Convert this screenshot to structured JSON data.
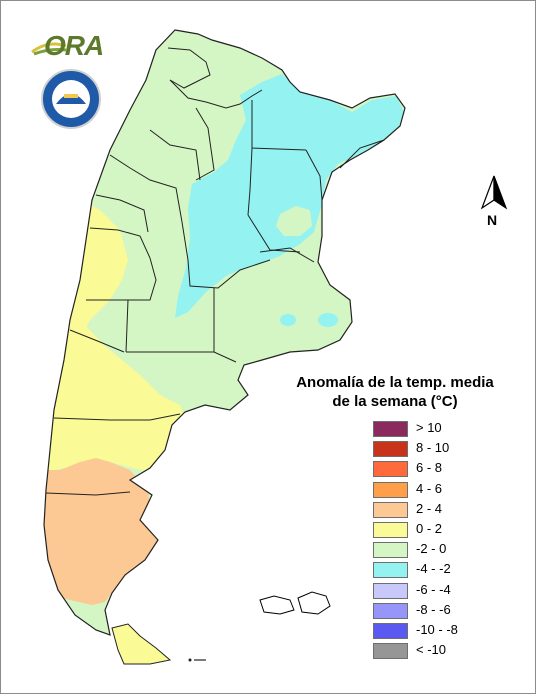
{
  "logo": {
    "text": "ORA"
  },
  "seal": {
    "text": "SERVICIO METEOROLOGICO NACIONAL · ARGENTINA"
  },
  "north_arrow": {
    "label": "N"
  },
  "legend": {
    "title_line1": "Anomalía de la temp. media",
    "title_line2": "de la semana (°C)",
    "items": [
      {
        "label": "> 10",
        "color": "#8b2a5c"
      },
      {
        "label": "8 - 10",
        "color": "#c8331b"
      },
      {
        "label": "6 - 8",
        "color": "#ff6a3d"
      },
      {
        "label": "4 - 6",
        "color": "#ff9f4a"
      },
      {
        "label": "2 - 4",
        "color": "#fcc894"
      },
      {
        "label": "0 - 2",
        "color": "#fafa96"
      },
      {
        "label": "-2 - 0",
        "color": "#d4f5c4"
      },
      {
        "label": "-4 - -2",
        "color": "#94f2f0"
      },
      {
        "label": "-6 - -4",
        "color": "#c8c8fa"
      },
      {
        "label": "-8 - -6",
        "color": "#9696fa"
      },
      {
        "label": "-10 - -8",
        "color": "#5a5af0"
      },
      {
        "label": "< -10",
        "color": "#969696"
      }
    ]
  },
  "colors": {
    "green": "#d4f5c4",
    "cyan": "#94f2f0",
    "yellow": "#fafa96",
    "orange": "#fcc894",
    "border": "#222222",
    "ora_green": "#5d7a2c",
    "seal_blue": "#1f5aa8"
  }
}
